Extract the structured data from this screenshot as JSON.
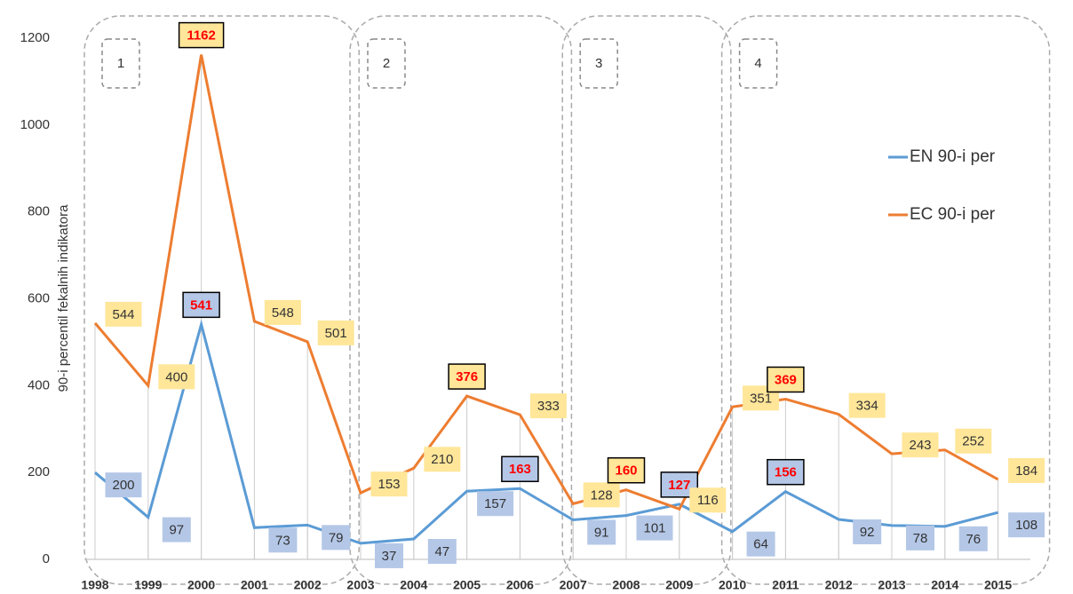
{
  "chart_data": {
    "type": "line",
    "y_label": "90-i percentil fekalnih indikatora",
    "categories": [
      "1998",
      "1999",
      "2000",
      "2001",
      "2002",
      "2003",
      "2004",
      "2005",
      "2006",
      "2007",
      "2008",
      "2009",
      "2010",
      "2011",
      "2012",
      "2013",
      "2014",
      "2015"
    ],
    "series": [
      {
        "name": "EN 90-i per",
        "color": "#5b9bd5",
        "label_fill": "#b4c7e7",
        "values": [
          200,
          97,
          541,
          73,
          79,
          37,
          47,
          157,
          163,
          91,
          101,
          127,
          64,
          156,
          92,
          78,
          76,
          108
        ],
        "highlighted": [
          false,
          false,
          true,
          false,
          false,
          false,
          false,
          false,
          true,
          false,
          false,
          true,
          false,
          true,
          false,
          false,
          false,
          false
        ]
      },
      {
        "name": "EC 90-i per",
        "color": "#ed7d31",
        "label_fill": "#ffe699",
        "values": [
          544,
          400,
          1162,
          548,
          501,
          153,
          210,
          376,
          333,
          128,
          160,
          116,
          351,
          369,
          334,
          243,
          252,
          184
        ],
        "highlighted": [
          false,
          false,
          true,
          false,
          false,
          false,
          false,
          true,
          false,
          false,
          true,
          false,
          false,
          true,
          false,
          false,
          false,
          false
        ]
      }
    ],
    "group_labels": [
      "1",
      "2",
      "3",
      "4"
    ],
    "ylim": [
      0,
      1200
    ],
    "yticks": [
      0,
      200,
      400,
      600,
      800,
      1000,
      1200
    ],
    "grid": false,
    "legend": "right"
  }
}
